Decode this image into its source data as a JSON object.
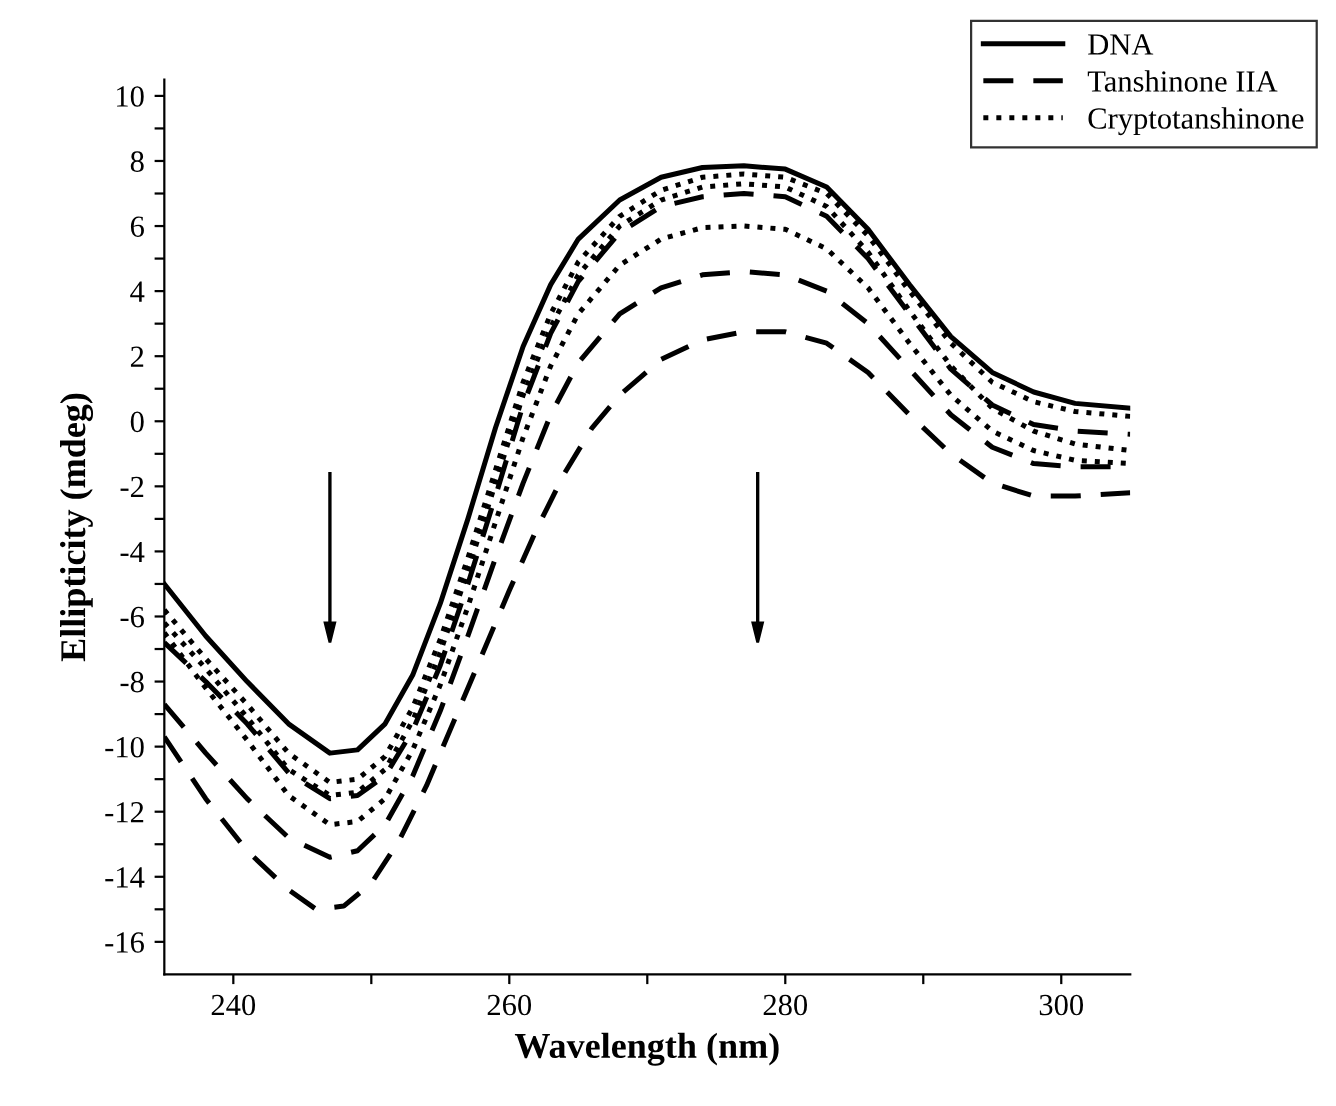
{
  "chart_data": {
    "type": "line",
    "xlabel": "Wavelength (nm)",
    "ylabel": "Ellipticity (mdeg)",
    "xlim": [
      235,
      305
    ],
    "ylim": [
      -17,
      10.5
    ],
    "xticks": [
      240,
      {
        "value": 250,
        "label": null
      },
      260,
      {
        "value": 270,
        "label": null
      },
      280,
      {
        "value": 290,
        "label": null
      },
      300
    ],
    "yticks": [
      -16,
      {
        "value": -15,
        "label": null
      },
      -14,
      {
        "value": -13,
        "label": null
      },
      -12,
      {
        "value": -11,
        "label": null
      },
      -10,
      {
        "value": -9,
        "label": null
      },
      -8,
      {
        "value": -7,
        "label": null
      },
      -6,
      {
        "value": -5,
        "label": null
      },
      -4,
      {
        "value": -3,
        "label": null
      },
      -2,
      {
        "value": -1,
        "label": null
      },
      0,
      {
        "value": 1,
        "label": null
      },
      2,
      {
        "value": 3,
        "label": null
      },
      4,
      {
        "value": 5,
        "label": null
      },
      6,
      {
        "value": 7,
        "label": null
      },
      8,
      {
        "value": 9,
        "label": null
      },
      10
    ],
    "grid": false,
    "legend": "top right",
    "marker": "none",
    "x": [
      235,
      238,
      241,
      244,
      247,
      249,
      251,
      253,
      255,
      257,
      259,
      261,
      263,
      265,
      268,
      271,
      274,
      277,
      280,
      283,
      286,
      289,
      292,
      295,
      298,
      301,
      305
    ],
    "series": [
      {
        "name": "DNA",
        "color": "#000000",
        "line_style": "solid",
        "values": [
          -5.0,
          -6.6,
          -8.0,
          -9.3,
          -10.2,
          -10.1,
          -9.3,
          -7.8,
          -5.6,
          -3.0,
          -0.2,
          2.3,
          4.2,
          5.6,
          6.8,
          7.5,
          7.8,
          7.85,
          7.75,
          7.2,
          5.9,
          4.2,
          2.6,
          1.5,
          0.9,
          0.55,
          0.4
        ]
      },
      {
        "name": "Tanshinone IIA",
        "color": "#000000",
        "line_style": "dashed",
        "values": [
          -6.8,
          -8.0,
          -9.3,
          -10.8,
          -11.6,
          -11.5,
          -10.9,
          -9.5,
          -7.5,
          -5.0,
          -2.3,
          0.5,
          2.7,
          4.3,
          5.8,
          6.6,
          6.9,
          7.0,
          6.9,
          6.3,
          5.0,
          3.3,
          1.6,
          0.5,
          -0.1,
          -0.3,
          -0.4
        ]
      },
      {
        "name": "Cryptotanshinone",
        "color": "#000000",
        "line_style": "dotted",
        "values": [
          -5.8,
          -7.3,
          -8.7,
          -10.2,
          -11.1,
          -11.0,
          -10.3,
          -8.8,
          -6.7,
          -4.2,
          -1.5,
          1.2,
          3.3,
          4.9,
          6.3,
          7.1,
          7.5,
          7.6,
          7.5,
          7.0,
          5.7,
          4.0,
          2.4,
          1.2,
          0.6,
          0.3,
          0.15
        ]
      },
      {
        "color": "#000000",
        "line_style": "dotted",
        "values": [
          -6.2,
          -7.6,
          -9.1,
          -10.7,
          -11.5,
          -11.4,
          -10.7,
          -9.2,
          -7.1,
          -4.6,
          -1.9,
          0.8,
          2.9,
          4.5,
          6.0,
          6.8,
          7.2,
          7.3,
          7.2,
          6.6,
          5.2,
          3.4,
          1.7,
          0.4,
          -0.3,
          -0.7,
          -0.9
        ]
      },
      {
        "color": "#000000",
        "line_style": "dotted",
        "values": [
          -6.5,
          -8.2,
          -9.8,
          -11.5,
          -12.4,
          -12.3,
          -11.6,
          -10.1,
          -8.1,
          -5.7,
          -3.1,
          -0.5,
          1.7,
          3.3,
          4.8,
          5.6,
          5.95,
          6.0,
          5.9,
          5.3,
          4.1,
          2.4,
          0.8,
          -0.3,
          -0.9,
          -1.2,
          -1.3
        ]
      },
      {
        "color": "#000000",
        "line_style": "dashed",
        "values": [
          -8.7,
          -10.2,
          -11.6,
          -12.8,
          -13.4,
          -13.2,
          -12.4,
          -10.9,
          -8.9,
          -6.6,
          -4.2,
          -1.9,
          0.2,
          1.8,
          3.3,
          4.1,
          4.5,
          4.6,
          4.5,
          4.0,
          3.0,
          1.6,
          0.2,
          -0.8,
          -1.3,
          -1.4,
          -1.4
        ]
      },
      {
        "color": "#000000",
        "line_style": "dashed",
        "x": [
          235,
          238,
          241,
          244,
          246,
          248,
          250,
          252,
          254,
          256,
          258,
          260,
          262,
          264,
          266,
          268,
          271,
          274,
          277,
          280,
          283,
          286,
          289,
          292,
          295,
          298,
          301,
          305
        ],
        "values": [
          -9.7,
          -11.6,
          -13.2,
          -14.4,
          -15.0,
          -14.9,
          -14.2,
          -12.9,
          -11.2,
          -9.2,
          -7.2,
          -5.2,
          -3.3,
          -1.6,
          -0.2,
          0.8,
          1.9,
          2.5,
          2.75,
          2.75,
          2.4,
          1.5,
          0.2,
          -1.0,
          -1.9,
          -2.3,
          -2.3,
          -2.2
        ]
      }
    ]
  }
}
